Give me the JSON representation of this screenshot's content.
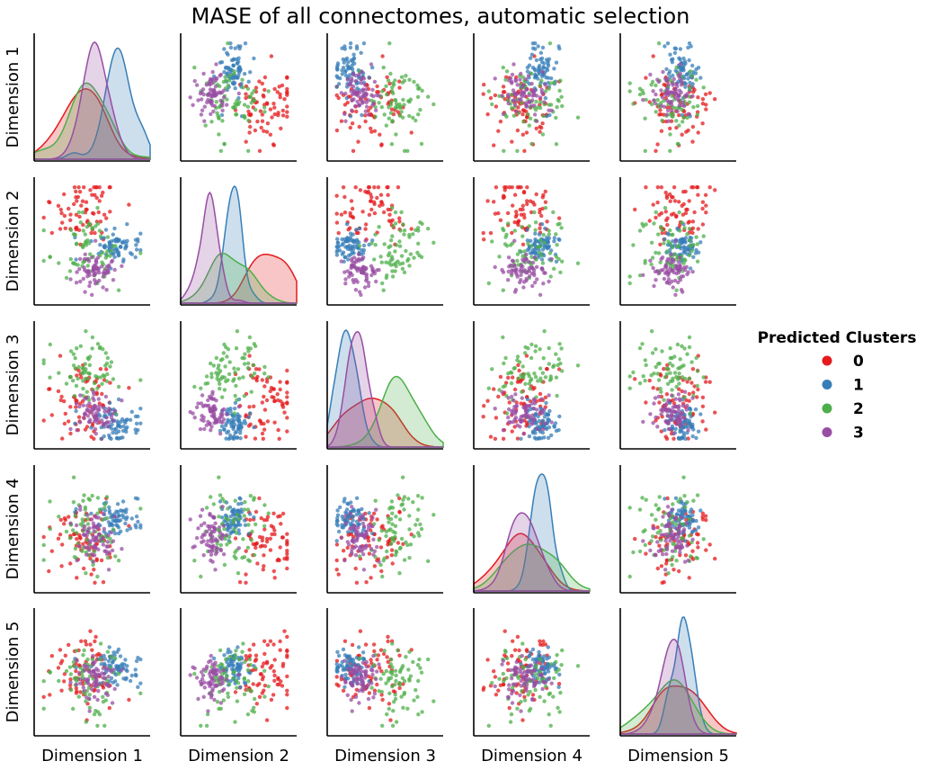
{
  "chart_data": {
    "type": "scatter",
    "title": "MASE of all connectomes, automatic selection",
    "dimensions": [
      "Dimension 1",
      "Dimension 2",
      "Dimension 3",
      "Dimension 4",
      "Dimension 5"
    ],
    "diagonal": "kde",
    "grid": false,
    "legend": {
      "title": "Predicted Clusters",
      "placement": "right",
      "entries": [
        {
          "label": "0",
          "color": "#e41a1c"
        },
        {
          "label": "1",
          "color": "#377eb8"
        },
        {
          "label": "2",
          "color": "#4daf4a"
        },
        {
          "label": "3",
          "color": "#984ea3"
        }
      ]
    },
    "clusters": [
      {
        "name": "0",
        "color": "#e41a1c",
        "mean": [
          0.4,
          0.78,
          0.38,
          0.38,
          0.5
        ],
        "sd": [
          0.18,
          0.15,
          0.17,
          0.18,
          0.18
        ]
      },
      {
        "name": "1",
        "color": "#377eb8",
        "mean": [
          0.72,
          0.45,
          0.16,
          0.6,
          0.55
        ],
        "sd": [
          0.11,
          0.07,
          0.08,
          0.07,
          0.07
        ]
      },
      {
        "name": "2",
        "color": "#4daf4a",
        "mean": [
          0.45,
          0.45,
          0.62,
          0.5,
          0.42
        ],
        "sd": [
          0.17,
          0.14,
          0.15,
          0.18,
          0.17
        ]
      },
      {
        "name": "3",
        "color": "#984ea3",
        "mean": [
          0.5,
          0.25,
          0.25,
          0.42,
          0.45
        ],
        "sd": [
          0.12,
          0.08,
          0.08,
          0.12,
          0.1
        ]
      }
    ]
  }
}
